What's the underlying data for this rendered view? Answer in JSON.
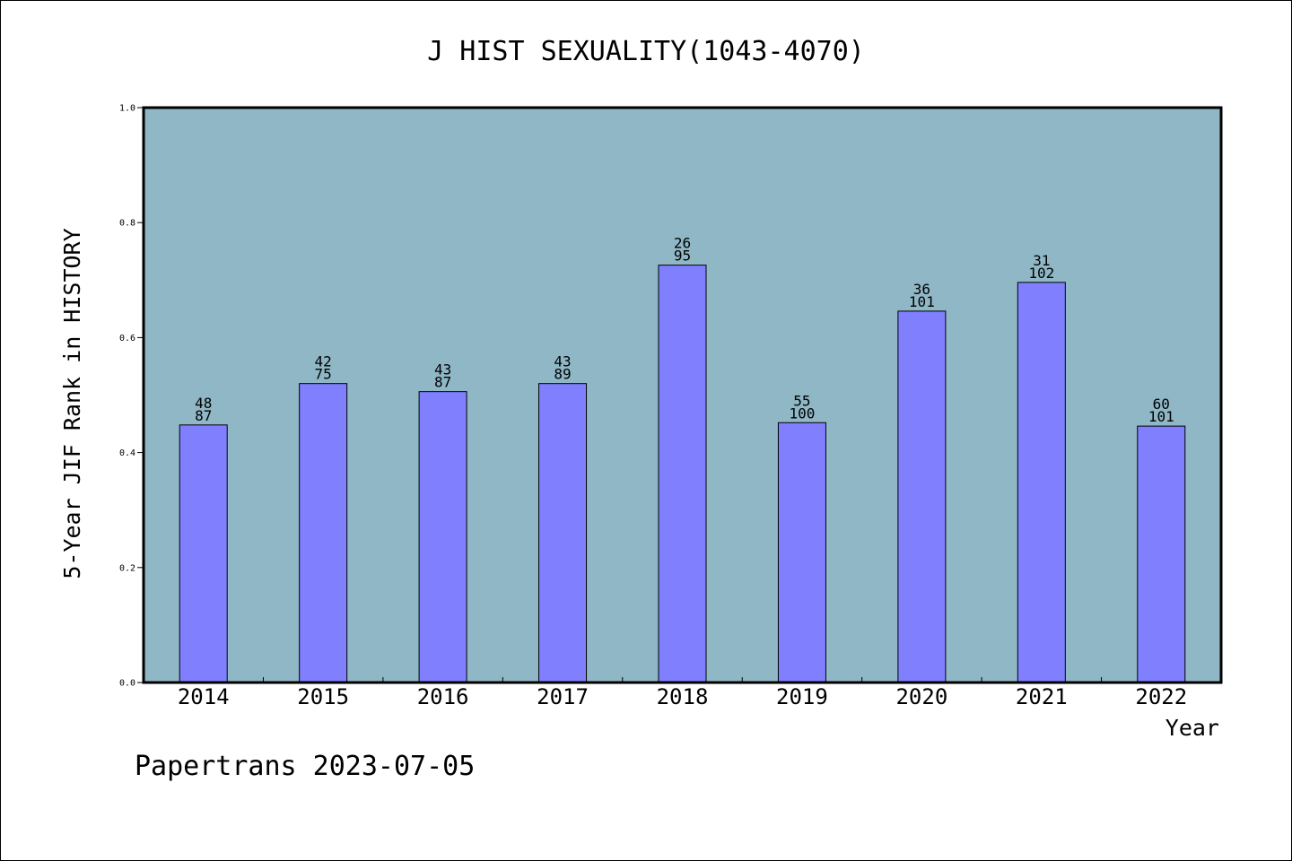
{
  "chart_data": {
    "type": "bar",
    "title": "J HIST SEXUALITY(1043-4070)",
    "xlabel": "Year",
    "ylabel": "5-Year JIF Rank in HISTORY",
    "ylim": [
      0,
      1.0
    ],
    "yticks": [
      "0.0",
      "0.2",
      "0.4",
      "0.6",
      "0.8",
      "1.0"
    ],
    "categories": [
      "2014",
      "2015",
      "2016",
      "2017",
      "2018",
      "2019",
      "2020",
      "2021",
      "2022"
    ],
    "values": [
      0.448,
      0.52,
      0.506,
      0.52,
      0.726,
      0.452,
      0.646,
      0.696,
      0.446
    ],
    "labels_top": [
      "48",
      "42",
      "43",
      "43",
      "26",
      "55",
      "36",
      "31",
      "60"
    ],
    "labels_bottom": [
      "87",
      "75",
      "87",
      "89",
      "95",
      "100",
      "101",
      "102",
      "101"
    ],
    "grid": false,
    "colors": {
      "plot_background": "#8fb7c5",
      "bar_fill": "#8080ff",
      "bar_stroke": "#000000"
    }
  },
  "footer": {
    "watermark": "Papertrans 2023-07-05"
  }
}
